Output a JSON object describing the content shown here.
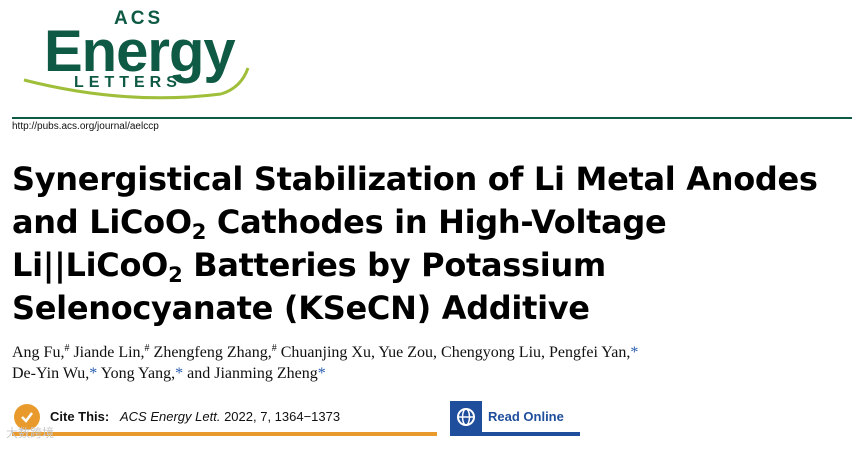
{
  "journal_logo": {
    "line1": "ACS",
    "line2": "Energy",
    "line3": "LETTERS",
    "brand_color": "#0f5a45",
    "accent_color": "#9fbf3a"
  },
  "journal_url": "http://pubs.acs.org/journal/aelccp",
  "title": {
    "line1": "Synergistical Stabilization of Li Metal Anodes",
    "line2_a": "and LiCoO",
    "line2_sub": "2",
    "line2_b": " Cathodes in High-Voltage",
    "line3_a": "Li||LiCoO",
    "line3_sub": "2",
    "line3_b": " Batteries by Potassium",
    "line4": "Selenocyanate (KSeCN) Additive"
  },
  "authors": {
    "a1": "Ang Fu,",
    "a2": " Jiande Lin,",
    "a3": " Zhengfeng Zhang,",
    "a4": " Chuanjing Xu, Yue Zou, Chengyong Liu, Pengfei Yan,",
    "a5": "De-Yin Wu,",
    "a6": " Yong Yang,",
    "a7": " and Jianming Zheng",
    "hash_mark": "#",
    "star_mark": "*"
  },
  "cite": {
    "label": "Cite This:",
    "journal": "ACS Energy Lett.",
    "details": " 2022, 7, 1364−1373",
    "color": "#e89b2c"
  },
  "read_online": {
    "label": "Read Online",
    "color": "#1f4e9c"
  },
  "watermark": "大数跨境"
}
